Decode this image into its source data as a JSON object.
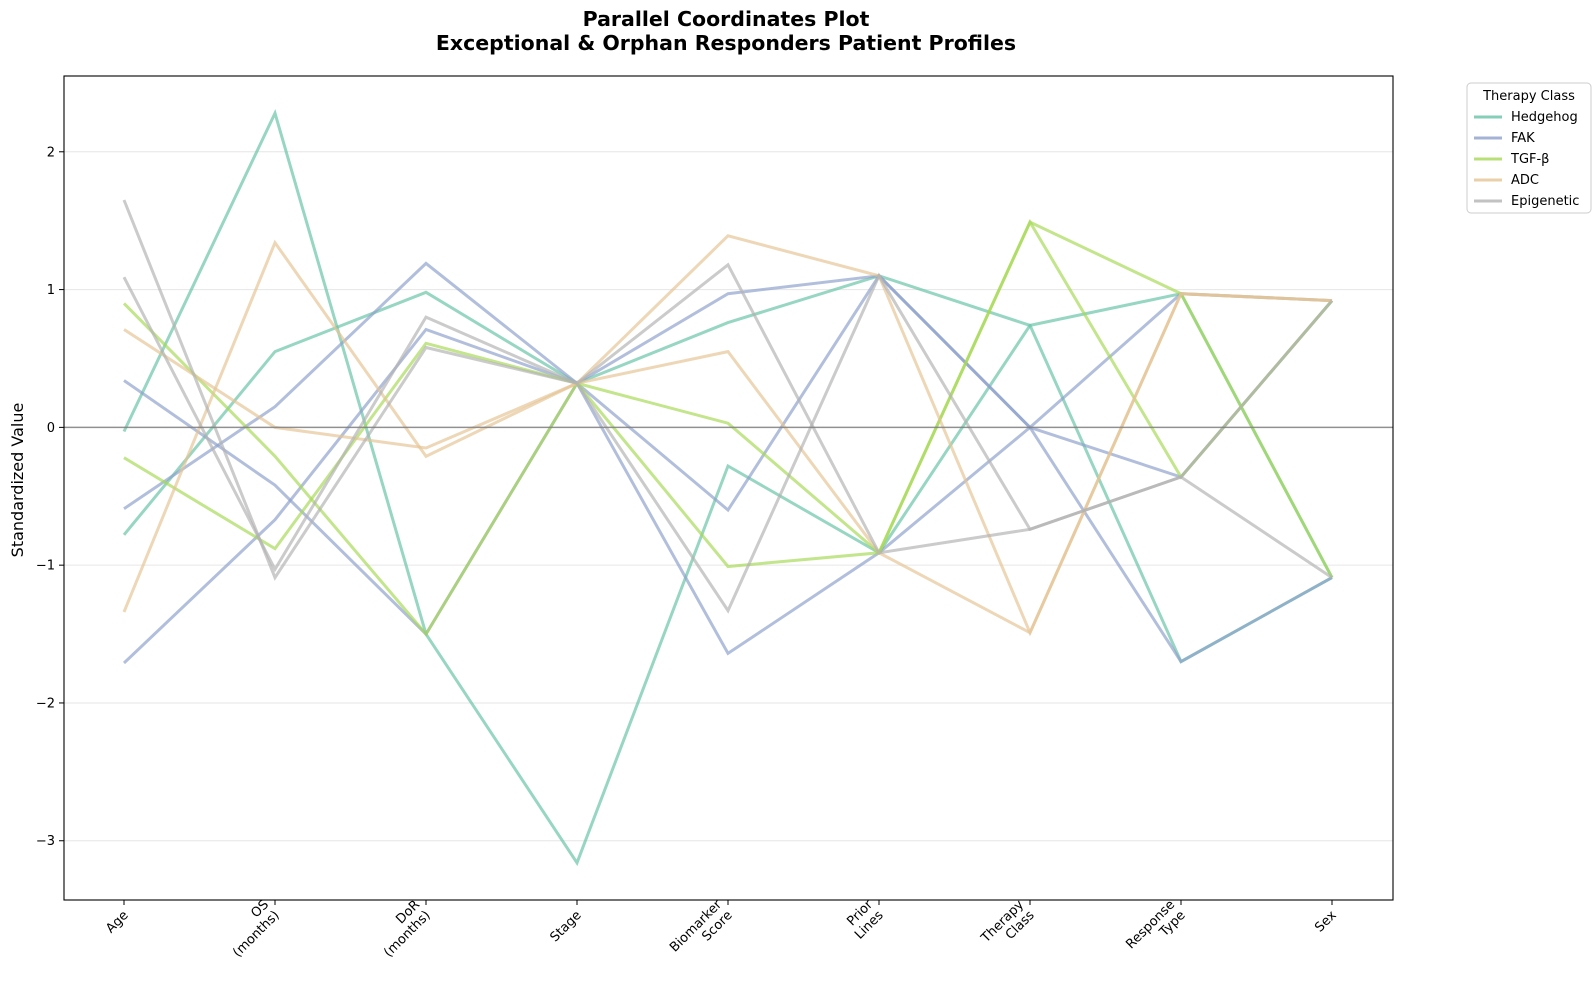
{
  "chart_data": {
    "type": "line",
    "subtype": "parallel-coordinates",
    "title_line1": "Parallel Coordinates Plot",
    "title_line2": "Exceptional & Orphan Responders Patient Profiles",
    "ylabel": "Standardized Value",
    "xlabel": "",
    "ylim": [
      -3.43,
      2.55
    ],
    "yticks": [
      2,
      1,
      0,
      -1,
      -2,
      -3
    ],
    "ytick_labels": [
      "2",
      "1",
      "0",
      "−1",
      "−2",
      "−3"
    ],
    "grid": "horizontal",
    "zero_line": true,
    "axes": [
      [
        "Age"
      ],
      [
        "OS",
        "(months)"
      ],
      [
        "DoR",
        "(months)"
      ],
      [
        "Stage"
      ],
      [
        "Biomarker",
        "Score"
      ],
      [
        "Prior",
        "Lines"
      ],
      [
        "Therapy",
        "Class"
      ],
      [
        "Response",
        "Type"
      ],
      [
        "Sex"
      ]
    ],
    "legend": {
      "title": "Therapy Class",
      "placement": "outside-top-right",
      "entries": [
        "Hedgehog",
        "FAK",
        "TGF-β",
        "ADC",
        "Epigenetic"
      ]
    },
    "colors": {
      "Hedgehog": "#66c2a5",
      "FAK": "#8da0cb",
      "TGF-β": "#a6d854",
      "ADC": "#e5c494",
      "Epigenetic": "#b3b3b3"
    },
    "series": [
      {
        "name": "Hedgehog",
        "values": [
          -0.03,
          2.28,
          -1.5,
          -3.16,
          -0.28,
          -0.91,
          0.74,
          0.97,
          -1.09
        ]
      },
      {
        "name": "Hedgehog",
        "values": [
          -0.78,
          0.55,
          0.98,
          0.32,
          0.76,
          1.1,
          0.74,
          -1.7,
          -1.09
        ]
      },
      {
        "name": "FAK",
        "values": [
          0.34,
          -0.42,
          -1.5,
          0.32,
          -1.64,
          -0.91,
          0.0,
          0.97,
          0.92
        ]
      },
      {
        "name": "FAK",
        "values": [
          -0.59,
          0.15,
          1.19,
          0.32,
          0.97,
          1.1,
          0.0,
          -0.36,
          0.92
        ]
      },
      {
        "name": "FAK",
        "values": [
          -1.71,
          -0.67,
          0.71,
          0.32,
          -0.6,
          1.1,
          0.0,
          -1.7,
          -1.09
        ]
      },
      {
        "name": "TGF-β",
        "values": [
          0.9,
          -0.21,
          -1.5,
          0.32,
          0.03,
          -0.91,
          1.49,
          0.97,
          -1.09
        ]
      },
      {
        "name": "TGF-β",
        "values": [
          -0.22,
          -0.88,
          0.61,
          0.32,
          -1.01,
          -0.91,
          1.49,
          -0.36,
          0.92
        ]
      },
      {
        "name": "ADC",
        "values": [
          0.71,
          0.0,
          -0.15,
          0.32,
          1.39,
          1.1,
          -1.49,
          0.97,
          0.92
        ]
      },
      {
        "name": "ADC",
        "values": [
          -1.34,
          1.34,
          -0.21,
          0.32,
          0.55,
          -0.91,
          -1.49,
          0.97,
          0.92
        ]
      },
      {
        "name": "Epigenetic",
        "values": [
          1.65,
          -1.09,
          0.58,
          0.32,
          -1.33,
          1.1,
          -0.74,
          -0.36,
          0.92
        ]
      },
      {
        "name": "Epigenetic",
        "values": [
          1.09,
          -1.03,
          0.8,
          0.32,
          1.18,
          -0.91,
          -0.74,
          -0.36,
          -1.09
        ]
      }
    ]
  }
}
